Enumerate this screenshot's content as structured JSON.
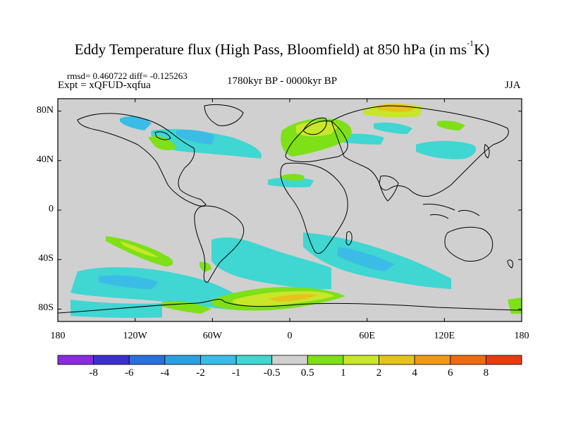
{
  "title": {
    "main": "Eddy Temperature flux (High Pass, Bloomfield) at 850 hPa (in ms",
    "sup": "-1",
    "tail": "K)"
  },
  "stats": "rmsd= 0.460722 diff= -0.125263",
  "expt": "Expt = xQFUD-xqfua",
  "period": "1780kyr BP - 0000kyr BP",
  "season": "JJA",
  "axes": {
    "x_ticks": [
      "180",
      "120W",
      "60W",
      "0",
      "60E",
      "120E",
      "180"
    ],
    "y_ticks": [
      "80N",
      "40N",
      "0",
      "40S",
      "80S"
    ]
  },
  "colorbar": {
    "labels": [
      "-8",
      "-6",
      "-4",
      "-2",
      "-1",
      "-0.5",
      "0.5",
      "1",
      "2",
      "4",
      "6",
      "8"
    ],
    "colors": [
      "#8a2be2",
      "#3b2fd0",
      "#2a6fdc",
      "#2b9fe0",
      "#3bbce6",
      "#40d6d2",
      "#d0d0d0",
      "#7ee017",
      "#c8e62a",
      "#e6c31c",
      "#f09a14",
      "#ee6a12",
      "#e63c10"
    ]
  },
  "colors": {
    "land_bg": "#d0d0d0",
    "coast": "#000000"
  }
}
